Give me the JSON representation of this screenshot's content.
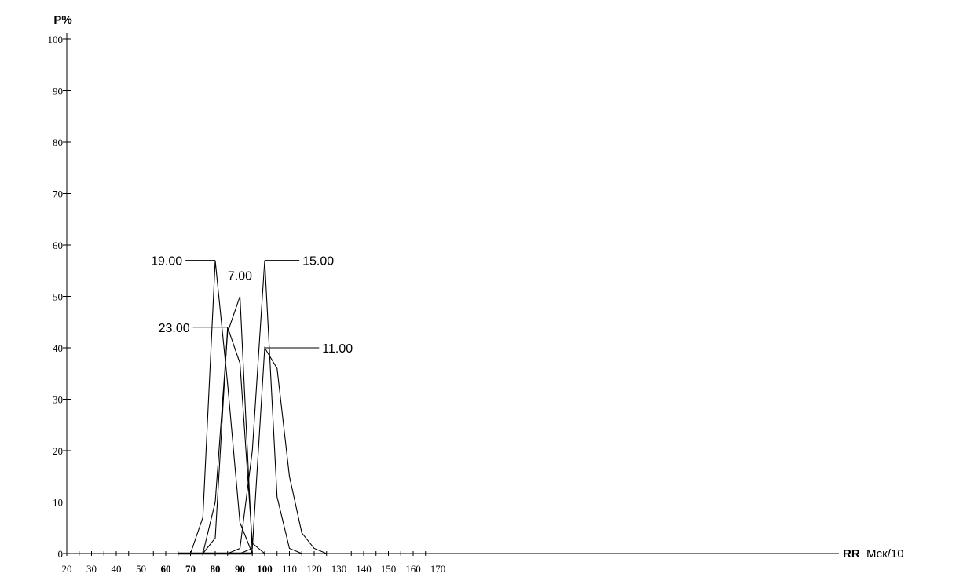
{
  "chart_data": {
    "type": "line",
    "ylabel": "P%",
    "xlabel": "RR",
    "xunit": "Мск/10",
    "xlim": [
      20,
      170
    ],
    "ylim": [
      0,
      100
    ],
    "x_ticks": [
      20,
      30,
      40,
      50,
      60,
      70,
      80,
      90,
      100,
      110,
      120,
      130,
      140,
      150,
      160,
      170
    ],
    "x_ticks_bold": [
      60,
      70,
      80,
      90,
      100
    ],
    "y_ticks": [
      0,
      10,
      20,
      30,
      40,
      50,
      60,
      70,
      80,
      90,
      100
    ],
    "grid": false,
    "series": [
      {
        "name": "19.00",
        "x": [
          70,
          75,
          80,
          85,
          90,
          95
        ],
        "y": [
          0,
          7,
          57,
          33,
          6,
          0
        ],
        "label_anchor": [
          80,
          57
        ],
        "label_pos": [
          68,
          57
        ]
      },
      {
        "name": "23.00",
        "x": [
          75,
          80,
          85,
          90,
          95,
          100
        ],
        "y": [
          0,
          3,
          44,
          37,
          2,
          0
        ],
        "label_anchor": [
          85,
          44
        ],
        "label_pos": [
          71,
          44
        ]
      },
      {
        "name": "7.00",
        "x": [
          75,
          80,
          85,
          90,
          95
        ],
        "y": [
          0,
          10,
          43,
          50,
          0
        ],
        "label_anchor": [
          90,
          50
        ],
        "label_pos": [
          90,
          52
        ]
      },
      {
        "name": "15.00",
        "x": [
          85,
          90,
          95,
          100,
          105,
          110,
          115
        ],
        "y": [
          0,
          1,
          20,
          57,
          11,
          1,
          0
        ],
        "label_anchor": [
          100,
          57
        ],
        "label_pos": [
          114,
          57
        ]
      },
      {
        "name": "11.00",
        "x": [
          90,
          95,
          100,
          105,
          110,
          115,
          120,
          125
        ],
        "y": [
          0,
          1,
          40,
          36,
          15,
          4,
          1,
          0
        ],
        "label_anchor": [
          100,
          40
        ],
        "label_pos": [
          122,
          40
        ]
      }
    ]
  }
}
